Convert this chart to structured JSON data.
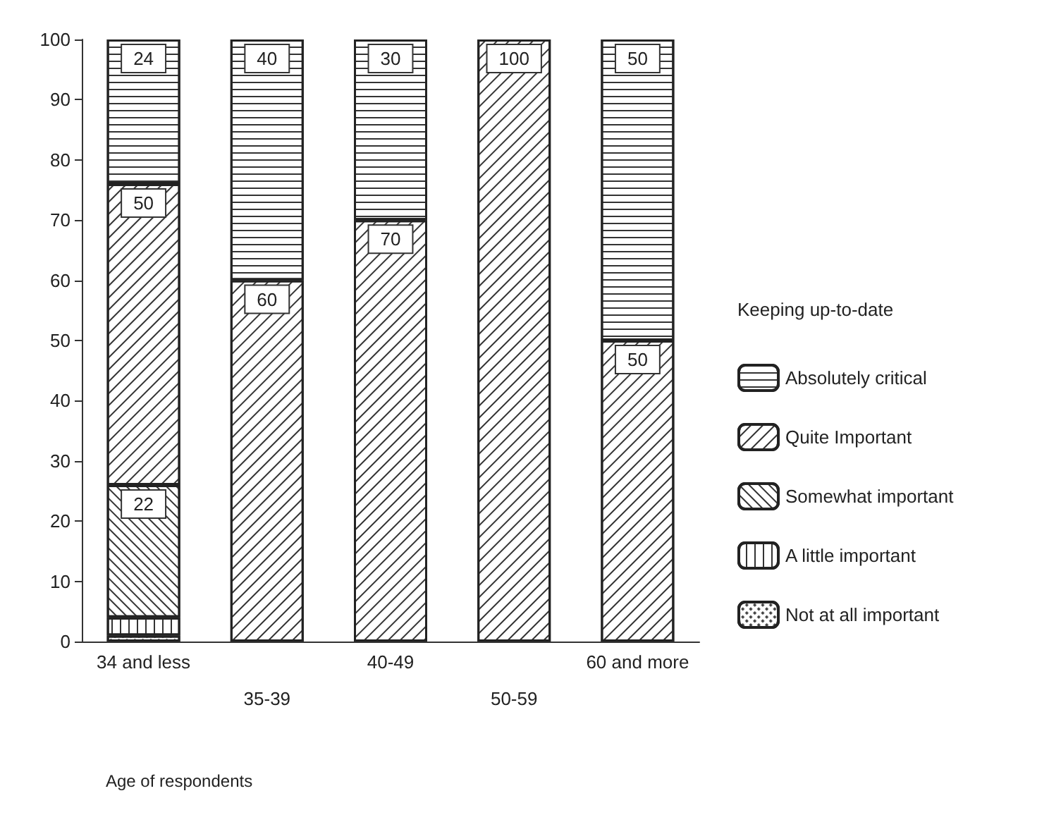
{
  "chart_data": {
    "type": "bar",
    "stacked": true,
    "xlabel": "Age of respondents",
    "legend_title": "Keeping up-to-date",
    "legend": "right",
    "grid": false,
    "categories": [
      "34 and less",
      "35-39",
      "40-49",
      "50-59",
      "60 and more"
    ],
    "ylim": [
      0,
      100
    ],
    "yticks": [
      0,
      10,
      20,
      30,
      40,
      50,
      60,
      70,
      80,
      90,
      100
    ],
    "series": [
      {
        "name": "Not at all important",
        "color": "#ffffff",
        "values": [
          1,
          null,
          null,
          null,
          null
        ],
        "value_labels": [
          null,
          null,
          null,
          null,
          null
        ]
      },
      {
        "name": "A little important",
        "color": "#ffffff",
        "values": [
          3,
          null,
          null,
          null,
          null
        ],
        "value_labels": [
          null,
          null,
          null,
          null,
          null
        ]
      },
      {
        "name": "Somewhat important",
        "color": "#ffffff",
        "values": [
          22,
          null,
          null,
          null,
          null
        ],
        "value_labels": [
          "22",
          null,
          null,
          null,
          null
        ]
      },
      {
        "name": "Quite Important",
        "color": "#ffffff",
        "values": [
          50,
          60,
          70,
          100,
          50
        ],
        "value_labels": [
          "50",
          "60",
          "70",
          "100",
          "50"
        ]
      },
      {
        "name": "Absolutely critical",
        "color": "#ffffff",
        "values": [
          24,
          40,
          30,
          null,
          50
        ],
        "value_labels": [
          "24",
          "40",
          "30",
          null,
          "50"
        ]
      }
    ]
  }
}
